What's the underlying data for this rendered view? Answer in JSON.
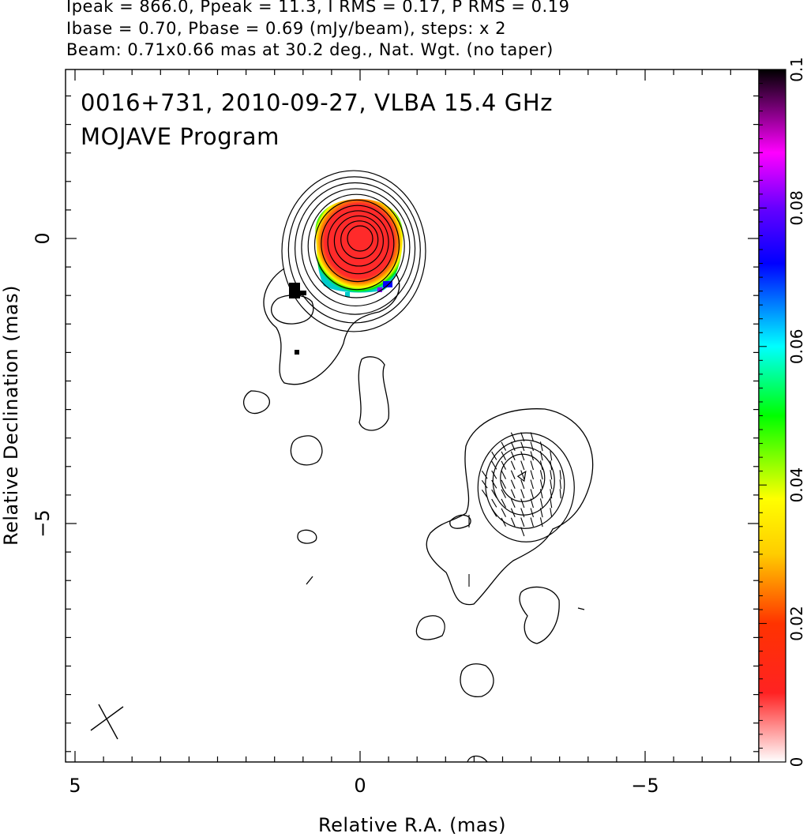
{
  "header": {
    "line1": "Ipeak = 866.0, Ppeak = 11.3, I RMS = 0.17, P RMS = 0.19",
    "line2": "Ibase = 0.70, Pbase = 0.69 (mJy/beam), steps: x 2",
    "line3": "Beam: 0.71x0.66 mas at 30.2 deg., Nat. Wgt. (no taper)"
  },
  "plot": {
    "title_line1": "0016+731, 2010-09-27, VLBA 15.4 GHz",
    "title_line2": "MOJAVE Program"
  },
  "chart_data": {
    "type": "heatmap",
    "xlabel": "Relative R.A. (mas)",
    "ylabel": "Relative Declination (mas)",
    "xlim": [
      5.2,
      -7
    ],
    "ylim": [
      -9,
      3
    ],
    "xticks": [
      5,
      0,
      -5
    ],
    "xtick_labels": [
      "5",
      "0",
      "−5"
    ],
    "yticks": [
      0,
      -5
    ],
    "ytick_labels": [
      "0",
      "−5"
    ],
    "colorbar": {
      "range": [
        0,
        0.1
      ],
      "ticks": [
        0,
        0.02,
        0.04,
        0.06,
        0.08,
        0.1
      ],
      "tick_labels": [
        "0",
        "0.02",
        "0.04",
        "0.06",
        "0.08",
        "0.1"
      ],
      "colors": [
        "#ffffff",
        "#ff0000",
        "#ffff00",
        "#00ff00",
        "#00ffff",
        "#0000ff",
        "#ff00ff",
        "#000000"
      ]
    },
    "core": {
      "x": 0,
      "y": 0,
      "contour_levels": 11
    },
    "jet_component": {
      "x": -2.85,
      "y": -4.2,
      "contour_levels": 4
    },
    "beam": {
      "major_mas": 0.71,
      "minor_mas": 0.66,
      "pa_deg": 30.2
    },
    "grid": false
  }
}
